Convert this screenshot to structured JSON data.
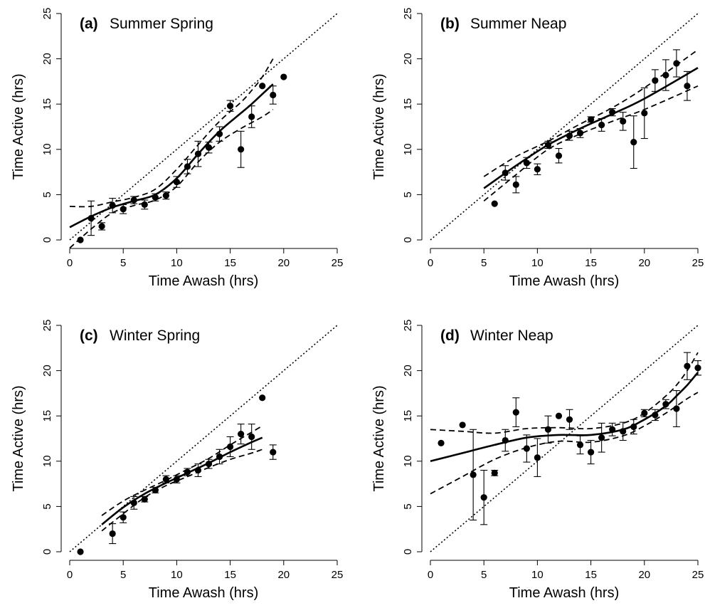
{
  "chart_data": [
    {
      "type": "scatter",
      "panel_tag": "(a)",
      "title": "Summer Spring",
      "xlabel": "Time Awash (hrs)",
      "ylabel": "Time Active (hrs)",
      "xlim": [
        0,
        25
      ],
      "ylim": [
        0,
        25
      ],
      "xticks": [
        "0",
        "5",
        "10",
        "15",
        "20",
        "25"
      ],
      "yticks": [
        "0",
        "5",
        "10",
        "15",
        "20",
        "25"
      ],
      "points": [
        {
          "x": 1,
          "y": 0,
          "err": 0
        },
        {
          "x": 2,
          "y": 2.4,
          "err": 1.9
        },
        {
          "x": 3,
          "y": 1.5,
          "err": 0.4
        },
        {
          "x": 4,
          "y": 3.8,
          "err": 0.8
        },
        {
          "x": 5,
          "y": 3.4,
          "err": 0.5
        },
        {
          "x": 6,
          "y": 4.4,
          "err": 0.4
        },
        {
          "x": 7,
          "y": 3.9,
          "err": 0.5
        },
        {
          "x": 8,
          "y": 4.7,
          "err": 0.4
        },
        {
          "x": 9,
          "y": 4.9,
          "err": 0.4
        },
        {
          "x": 10,
          "y": 6.4,
          "err": 0.6
        },
        {
          "x": 11,
          "y": 8.1,
          "err": 0.8
        },
        {
          "x": 12,
          "y": 9.5,
          "err": 1.4
        },
        {
          "x": 13,
          "y": 10.2,
          "err": 0.6
        },
        {
          "x": 14,
          "y": 11.7,
          "err": 0.8
        },
        {
          "x": 15,
          "y": 14.8,
          "err": 0.6
        },
        {
          "x": 16,
          "y": 10.0,
          "err": 2.0
        },
        {
          "x": 17,
          "y": 13.6,
          "err": 1.2
        },
        {
          "x": 18,
          "y": 17.0,
          "err": 0
        },
        {
          "x": 19,
          "y": 16.0,
          "err": 1.0
        },
        {
          "x": 20,
          "y": 18.0,
          "err": 0
        }
      ],
      "fit": {
        "x": [
          0,
          2,
          4,
          6,
          8,
          10,
          12,
          14,
          16,
          17,
          18,
          19
        ],
        "y": [
          1.4,
          2.6,
          3.6,
          4.3,
          5.0,
          6.8,
          9.5,
          12.0,
          14.0,
          15.0,
          16.1,
          17.2
        ]
      },
      "ci_lower": {
        "x": [
          0,
          2,
          4,
          6,
          8,
          10,
          12,
          14,
          16,
          18,
          19
        ],
        "y": [
          -0.9,
          1.2,
          3.0,
          3.8,
          4.4,
          5.9,
          8.6,
          10.8,
          12.3,
          13.6,
          14.4
        ]
      },
      "ci_upper": {
        "x": [
          0,
          2,
          4,
          6,
          8,
          10,
          12,
          14,
          16,
          17,
          18,
          19
        ],
        "y": [
          3.7,
          3.7,
          4.2,
          4.7,
          5.6,
          7.8,
          10.5,
          13.1,
          15.2,
          16.5,
          18.0,
          20.0
        ]
      },
      "reference_line": {
        "x": [
          0,
          25
        ],
        "y": [
          0,
          25
        ]
      }
    },
    {
      "type": "scatter",
      "panel_tag": "(b)",
      "title": "Summer Neap",
      "xlabel": "Time Awash (hrs)",
      "ylabel": "Time Active (hrs)",
      "xlim": [
        0,
        25
      ],
      "ylim": [
        0,
        25
      ],
      "xticks": [
        "0",
        "5",
        "10",
        "15",
        "20",
        "25"
      ],
      "yticks": [
        "0",
        "5",
        "10",
        "15",
        "20",
        "25"
      ],
      "points": [
        {
          "x": 6,
          "y": 4.0,
          "err": 0
        },
        {
          "x": 7,
          "y": 7.4,
          "err": 0.8
        },
        {
          "x": 8,
          "y": 6.1,
          "err": 0.9
        },
        {
          "x": 9,
          "y": 8.5,
          "err": 0.6
        },
        {
          "x": 10,
          "y": 7.8,
          "err": 0.6
        },
        {
          "x": 11,
          "y": 10.5,
          "err": 0.4
        },
        {
          "x": 12,
          "y": 9.3,
          "err": 0.8
        },
        {
          "x": 13,
          "y": 11.5,
          "err": 0.5
        },
        {
          "x": 14,
          "y": 11.8,
          "err": 0.5
        },
        {
          "x": 15,
          "y": 13.3,
          "err": 0.3
        },
        {
          "x": 16,
          "y": 12.7,
          "err": 0.7
        },
        {
          "x": 17,
          "y": 14.1,
          "err": 0.4
        },
        {
          "x": 18,
          "y": 13.1,
          "err": 1.0
        },
        {
          "x": 19,
          "y": 10.8,
          "err": 2.9
        },
        {
          "x": 20,
          "y": 14.0,
          "err": 2.8
        },
        {
          "x": 21,
          "y": 17.6,
          "err": 1.2
        },
        {
          "x": 22,
          "y": 18.2,
          "err": 1.7
        },
        {
          "x": 23,
          "y": 19.5,
          "err": 1.5
        },
        {
          "x": 24,
          "y": 17.0,
          "err": 1.6
        }
      ],
      "fit": {
        "x": [
          5,
          8,
          11,
          14,
          17,
          20,
          25
        ],
        "y": [
          5.7,
          8.2,
          10.5,
          12.3,
          13.9,
          15.6,
          19.0
        ]
      },
      "ci_lower": {
        "x": [
          5,
          8,
          11,
          14,
          17,
          20,
          25
        ],
        "y": [
          4.3,
          7.2,
          10.0,
          11.7,
          13.1,
          14.4,
          17.0
        ]
      },
      "ci_upper": {
        "x": [
          5,
          8,
          11,
          14,
          17,
          20,
          25
        ],
        "y": [
          7.0,
          9.2,
          10.9,
          12.8,
          14.6,
          16.8,
          21.0
        ]
      },
      "reference_line": {
        "x": [
          0,
          25
        ],
        "y": [
          0,
          25
        ]
      }
    },
    {
      "type": "scatter",
      "panel_tag": "(c)",
      "title": "Winter Spring",
      "xlabel": "Time Awash (hrs)",
      "ylabel": "Time Active (hrs)",
      "xlim": [
        0,
        25
      ],
      "ylim": [
        0,
        25
      ],
      "xticks": [
        "0",
        "5",
        "10",
        "15",
        "20",
        "25"
      ],
      "yticks": [
        "0",
        "5",
        "10",
        "15",
        "20",
        "25"
      ],
      "points": [
        {
          "x": 1,
          "y": 0,
          "err": 0
        },
        {
          "x": 4,
          "y": 2.0,
          "err": 1.1
        },
        {
          "x": 5,
          "y": 3.8,
          "err": 0.6
        },
        {
          "x": 6,
          "y": 5.4,
          "err": 0.7
        },
        {
          "x": 7,
          "y": 5.8,
          "err": 0.3
        },
        {
          "x": 8,
          "y": 6.8,
          "err": 0.3
        },
        {
          "x": 9,
          "y": 8.0,
          "err": 0.4
        },
        {
          "x": 10,
          "y": 8.0,
          "err": 0.4
        },
        {
          "x": 11,
          "y": 8.8,
          "err": 0.4
        },
        {
          "x": 12,
          "y": 9.0,
          "err": 0.7
        },
        {
          "x": 13,
          "y": 9.7,
          "err": 0.5
        },
        {
          "x": 14,
          "y": 10.5,
          "err": 0.8
        },
        {
          "x": 15,
          "y": 11.6,
          "err": 1.1
        },
        {
          "x": 16,
          "y": 13.0,
          "err": 1.1
        },
        {
          "x": 17,
          "y": 12.7,
          "err": 1.4
        },
        {
          "x": 18,
          "y": 17.0,
          "err": 0
        },
        {
          "x": 19,
          "y": 11.0,
          "err": 0.8
        }
      ],
      "fit": {
        "x": [
          3,
          5,
          7,
          9,
          11,
          13,
          15,
          17,
          18
        ],
        "y": [
          3.0,
          4.9,
          6.4,
          7.6,
          8.7,
          9.8,
          11.0,
          12.1,
          12.6
        ]
      },
      "ci_lower": {
        "x": [
          3,
          5,
          7,
          9,
          11,
          13,
          15,
          17,
          18
        ],
        "y": [
          2.3,
          4.2,
          6.0,
          7.3,
          8.3,
          9.3,
          10.2,
          10.9,
          11.3
        ]
      },
      "ci_upper": {
        "x": [
          3,
          5,
          7,
          9,
          11,
          13,
          15,
          17,
          18
        ],
        "y": [
          4.0,
          5.6,
          6.8,
          7.9,
          9.1,
          10.3,
          11.8,
          13.2,
          13.9
        ]
      },
      "reference_line": {
        "x": [
          0,
          25
        ],
        "y": [
          0,
          25
        ]
      }
    },
    {
      "type": "scatter",
      "panel_tag": "(d)",
      "title": "Winter Neap",
      "xlabel": "Time Awash (hrs)",
      "ylabel": "Time Active (hrs)",
      "xlim": [
        0,
        25
      ],
      "ylim": [
        0,
        25
      ],
      "xticks": [
        "0",
        "5",
        "10",
        "15",
        "20",
        "25"
      ],
      "yticks": [
        "0",
        "5",
        "10",
        "15",
        "20",
        "25"
      ],
      "points": [
        {
          "x": 1,
          "y": 12.0,
          "err": 0
        },
        {
          "x": 3,
          "y": 14.0,
          "err": 0
        },
        {
          "x": 4,
          "y": 8.5,
          "err": 5.0
        },
        {
          "x": 5,
          "y": 6.0,
          "err": 3.0
        },
        {
          "x": 6,
          "y": 8.7,
          "err": 0.3
        },
        {
          "x": 7,
          "y": 12.3,
          "err": 1.2
        },
        {
          "x": 8,
          "y": 15.4,
          "err": 1.6
        },
        {
          "x": 9,
          "y": 11.4,
          "err": 1.5
        },
        {
          "x": 10,
          "y": 10.4,
          "err": 2.1
        },
        {
          "x": 11,
          "y": 13.5,
          "err": 1.5
        },
        {
          "x": 12,
          "y": 15.0,
          "err": 0
        },
        {
          "x": 13,
          "y": 14.6,
          "err": 1.1
        },
        {
          "x": 14,
          "y": 11.8,
          "err": 1.0
        },
        {
          "x": 15,
          "y": 11.0,
          "err": 1.3
        },
        {
          "x": 16,
          "y": 12.6,
          "err": 1.6
        },
        {
          "x": 17,
          "y": 13.5,
          "err": 0.7
        },
        {
          "x": 18,
          "y": 13.3,
          "err": 1.0
        },
        {
          "x": 19,
          "y": 13.8,
          "err": 0.8
        },
        {
          "x": 20,
          "y": 15.3,
          "err": 0.4
        },
        {
          "x": 21,
          "y": 15.1,
          "err": 0.6
        },
        {
          "x": 22,
          "y": 16.3,
          "err": 0.5
        },
        {
          "x": 23,
          "y": 15.8,
          "err": 2.0
        },
        {
          "x": 24,
          "y": 20.5,
          "err": 1.5
        },
        {
          "x": 25,
          "y": 20.3,
          "err": 0.8
        }
      ],
      "fit": {
        "x": [
          0,
          3,
          6,
          9,
          12,
          15,
          18,
          20,
          22,
          23,
          24,
          25
        ],
        "y": [
          10.0,
          10.9,
          11.8,
          12.6,
          12.9,
          12.9,
          13.5,
          14.6,
          16.1,
          17.2,
          18.4,
          19.8
        ]
      },
      "ci_lower": {
        "x": [
          0,
          3,
          6,
          9,
          12,
          15,
          18,
          20,
          22,
          24,
          25
        ],
        "y": [
          6.4,
          8.3,
          10.2,
          11.5,
          12.2,
          12.1,
          12.8,
          13.9,
          15.3,
          16.9,
          17.6
        ]
      },
      "ci_upper": {
        "x": [
          0,
          3,
          6,
          9,
          12,
          15,
          18,
          20,
          22,
          23,
          24,
          25
        ],
        "y": [
          13.5,
          13.3,
          13.1,
          13.6,
          13.7,
          13.6,
          14.2,
          15.3,
          17.2,
          18.4,
          20.0,
          22.0
        ]
      },
      "reference_line": {
        "x": [
          0,
          25
        ],
        "y": [
          0,
          25
        ]
      }
    }
  ]
}
